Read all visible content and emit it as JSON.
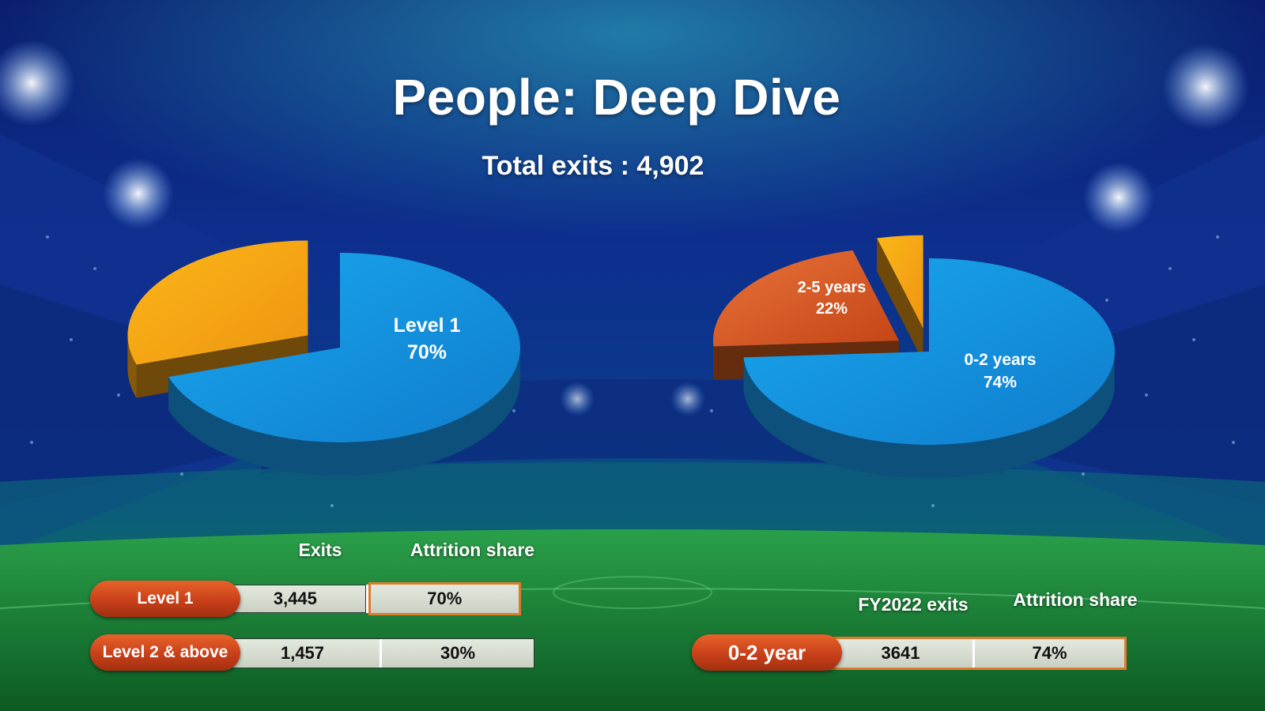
{
  "header": {
    "title": "People: Deep Dive",
    "subtitle": "Total exits : 4,902"
  },
  "chart_data": [
    {
      "type": "pie",
      "slices": [
        {
          "label": "Level 1",
          "value": 70,
          "value_label": "70%",
          "color": "#1592e0"
        },
        {
          "label": "",
          "value": 30,
          "value_label": "",
          "color": "#f6a313"
        }
      ]
    },
    {
      "type": "pie",
      "slices": [
        {
          "label": "0-2 years",
          "value": 74,
          "value_label": "74%",
          "color": "#1592e0"
        },
        {
          "label": "2-5 years",
          "value": 22,
          "value_label": "22%",
          "color": "#e06420"
        },
        {
          "label": "",
          "value": 4,
          "value_label": "",
          "color": "#f6a313"
        }
      ]
    }
  ],
  "table_level": {
    "headers": {
      "exits": "Exits",
      "share": "Attrition share"
    },
    "rows": [
      {
        "label": "Level 1",
        "exits": "3,445",
        "share": "70%"
      },
      {
        "label": "Level 2 & above",
        "exits": "1,457",
        "share": "30%"
      }
    ]
  },
  "table_tenure": {
    "headers": {
      "exits": "FY2022 exits",
      "share": "Attrition share"
    },
    "rows": [
      {
        "label": "0-2 year",
        "exits": "3641",
        "share": "74%"
      }
    ]
  },
  "colors": {
    "blue": "#1592e0",
    "orange": "#e06420",
    "gold": "#f6a313",
    "pill": "#c8401a"
  }
}
